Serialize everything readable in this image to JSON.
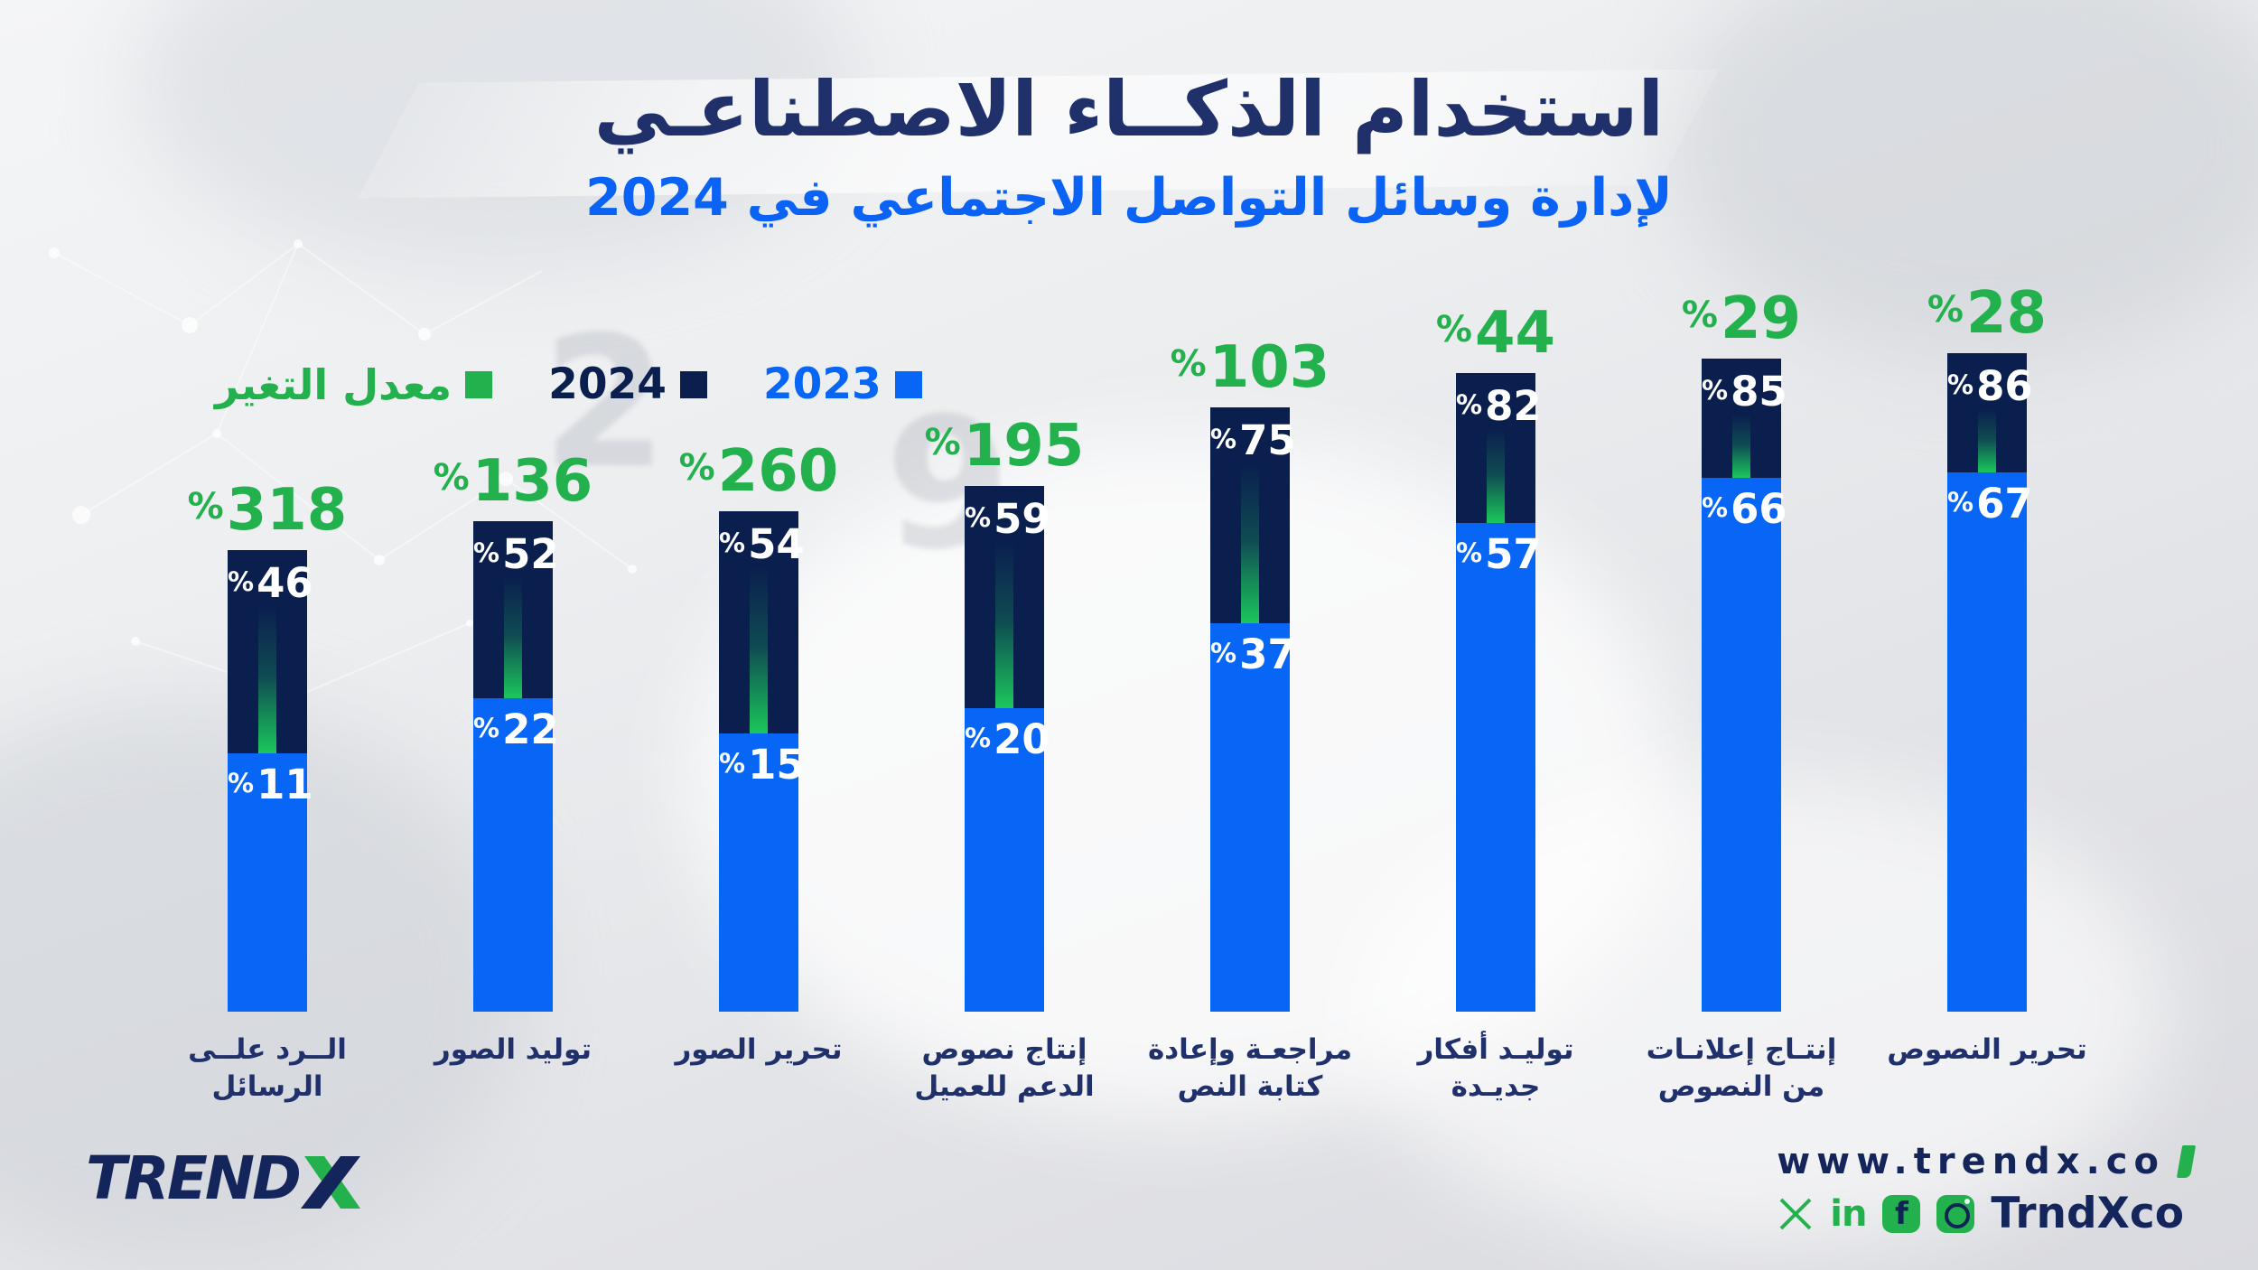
{
  "header": {
    "title": "استخدام الذكــاء الاصطناعـي",
    "subtitle": "لإدارة وسائل التواصل الاجتماعي في 2024"
  },
  "legend": {
    "items": [
      {
        "label": "2023",
        "color": "#0866f7"
      },
      {
        "label": "2024",
        "color": "#0a1f4e"
      },
      {
        "label": "معدل التغير",
        "color": "#23b14d"
      }
    ]
  },
  "chart_data": {
    "type": "bar",
    "stacked": true,
    "unit": "%",
    "direction": "rtl",
    "title": "استخدام الذكاء الاصطناعي لإدارة وسائل التواصل الاجتماعي في 2024",
    "legend_position": "top-left",
    "grid": false,
    "categories": [
      "الــرد علــى الرسائل",
      "توليد الصور",
      "تحرير الصور",
      "إنتاج نصوص الدعم للعميل",
      "مراجعـة وإعادة كتابة النص",
      "توليـد أفكار جديـدة",
      "إنتـاج إعلانـات من النصوص",
      "تحرير النصوص"
    ],
    "category_lines": [
      [
        "الــرد علــى",
        "الرسائل"
      ],
      [
        "توليد الصور"
      ],
      [
        "تحرير الصور"
      ],
      [
        "إنتاج نصوص",
        "الدعم للعميل"
      ],
      [
        "مراجعـة وإعادة",
        "كتابة النص"
      ],
      [
        "توليـد أفكار",
        "جديـدة"
      ],
      [
        "إنتـاج إعلانـات",
        "من النصوص"
      ],
      [
        "تحرير النصوص"
      ]
    ],
    "series": [
      {
        "name": "2023",
        "color": "#0866f7",
        "values": [
          11,
          22,
          15,
          20,
          37,
          57,
          66,
          67
        ]
      },
      {
        "name": "2024",
        "color": "#0a1f4e",
        "values": [
          46,
          52,
          54,
          59,
          75,
          82,
          85,
          86
        ]
      },
      {
        "name": "معدل التغير",
        "color": "#23b14d",
        "values": [
          318,
          136,
          260,
          195,
          103,
          44,
          29,
          28
        ]
      }
    ]
  },
  "background": {
    "digits": [
      "2",
      "9"
    ]
  },
  "footer": {
    "brand": {
      "trend": "TREND",
      "x": "X"
    },
    "website": "www.trendx.co",
    "handle": "TrndXco",
    "social_glyphs": {
      "linkedin": "in",
      "facebook": "f"
    },
    "social": [
      "x",
      "linkedin",
      "facebook",
      "instagram"
    ]
  }
}
